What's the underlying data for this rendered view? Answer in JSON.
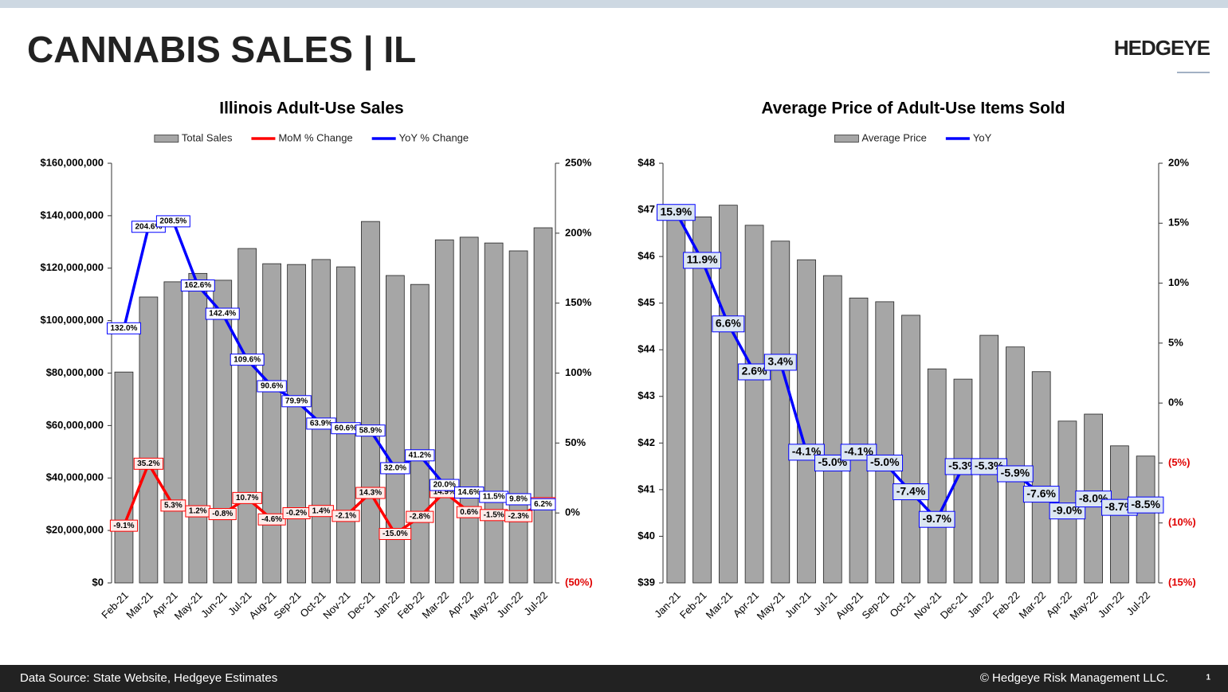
{
  "header": {
    "title": "CANNABIS SALES | IL",
    "logo": "HEDGEYE"
  },
  "footer": {
    "source": "Data Source: State Website, Hedgeye Estimates",
    "copyright": "© Hedgeye Risk Management LLC.",
    "page": "1"
  },
  "chart_data": [
    {
      "type": "combo",
      "title": "Illinois Adult-Use Sales",
      "categories": [
        "Feb-21",
        "Mar-21",
        "Apr-21",
        "May-21",
        "Jun-21",
        "Jul-21",
        "Aug-21",
        "Sep-21",
        "Oct-21",
        "Nov-21",
        "Dec-21",
        "Jan-22",
        "Feb-22",
        "Mar-22",
        "Apr-22",
        "May-22",
        "Jun-22",
        "Jul-22"
      ],
      "ylim": [
        0,
        160000000
      ],
      "yticks": [
        {
          "value": 0,
          "label": "$0"
        },
        {
          "value": 20000000,
          "label": "$20,000,000"
        },
        {
          "value": 40000000,
          "label": "$40,000,000"
        },
        {
          "value": 60000000,
          "label": "$60,000,000"
        },
        {
          "value": 80000000,
          "label": "$80,000,000"
        },
        {
          "value": 100000000,
          "label": "$100,000,000"
        },
        {
          "value": 120000000,
          "label": "$120,000,000"
        },
        {
          "value": 140000000,
          "label": "$140,000,000"
        },
        {
          "value": 160000000,
          "label": "$160,000,000"
        }
      ],
      "y2lim": [
        -50,
        250
      ],
      "y2ticks": [
        {
          "value": -50,
          "label": "(50%)"
        },
        {
          "value": 0,
          "label": "0%"
        },
        {
          "value": 50,
          "label": "50%"
        },
        {
          "value": 100,
          "label": "100%"
        },
        {
          "value": 150,
          "label": "150%"
        },
        {
          "value": 200,
          "label": "200%"
        },
        {
          "value": 250,
          "label": "250%"
        }
      ],
      "negative_tick_color": "#e00000",
      "series": [
        {
          "name": "Total Sales",
          "type": "bar",
          "color": "#a6a6a6",
          "values": [
            80400000,
            109000000,
            114800000,
            118000000,
            115400000,
            127500000,
            121700000,
            121400000,
            123300000,
            120500000,
            137800000,
            117200000,
            113800000,
            130800000,
            131800000,
            129600000,
            126600000,
            135400000
          ]
        },
        {
          "name": "MoM % Change",
          "type": "line",
          "axis": "y2",
          "color": "#ff0000",
          "label_fill": "#fdecea",
          "values": [
            -9.1,
            35.2,
            5.3,
            1.2,
            -0.8,
            10.7,
            -4.6,
            -0.2,
            1.4,
            -2.1,
            14.3,
            -15.0,
            -2.8,
            14.9,
            0.6,
            -1.5,
            -2.3,
            7.0
          ],
          "value_labels": [
            "-9.1%",
            "35.2%",
            "5.3%",
            "1.2%",
            "-0.8%",
            "10.7%",
            "-4.6%",
            "-0.2%",
            "1.4%",
            "-2.1%",
            "14.3%",
            "-15.0%",
            "-2.8%",
            "14.9%",
            "0.6%",
            "-1.5%",
            "-2.3%",
            "7.0%"
          ]
        },
        {
          "name": "YoY % Change",
          "type": "line",
          "axis": "y2",
          "color": "#0000ff",
          "label_fill": "#ffffff",
          "values": [
            132.0,
            204.6,
            208.5,
            162.6,
            142.4,
            109.6,
            90.6,
            79.9,
            63.9,
            60.6,
            58.9,
            32.0,
            41.2,
            20.0,
            14.6,
            11.5,
            9.8,
            6.2
          ],
          "value_labels": [
            "132.0%",
            "204.6%",
            "208.5%",
            "162.6%",
            "142.4%",
            "109.6%",
            "90.6%",
            "79.9%",
            "63.9%",
            "60.6%",
            "58.9%",
            "32.0%",
            "41.2%",
            "20.0%",
            "14.6%",
            "11.5%",
            "9.8%",
            "6.2%"
          ]
        }
      ]
    },
    {
      "type": "combo",
      "title": "Average Price of Adult-Use Items Sold",
      "categories": [
        "Jan-21",
        "Feb-21",
        "Mar-21",
        "Apr-21",
        "May-21",
        "Jun-21",
        "Jul-21",
        "Aug-21",
        "Sep-21",
        "Oct-21",
        "Nov-21",
        "Dec-21",
        "Jan-22",
        "Feb-22",
        "Mar-22",
        "Apr-22",
        "May-22",
        "Jun-22",
        "Jul-22"
      ],
      "ylim": [
        39,
        48
      ],
      "yticks": [
        {
          "value": 39,
          "label": "$39"
        },
        {
          "value": 40,
          "label": "$40"
        },
        {
          "value": 41,
          "label": "$41"
        },
        {
          "value": 42,
          "label": "$42"
        },
        {
          "value": 43,
          "label": "$43"
        },
        {
          "value": 44,
          "label": "$44"
        },
        {
          "value": 45,
          "label": "$45"
        },
        {
          "value": 46,
          "label": "$46"
        },
        {
          "value": 47,
          "label": "$47"
        },
        {
          "value": 48,
          "label": "$48"
        }
      ],
      "y2lim": [
        -15,
        20
      ],
      "y2ticks": [
        {
          "value": -15,
          "label": "(15%)"
        },
        {
          "value": -10,
          "label": "(10%)"
        },
        {
          "value": -5,
          "label": "(5%)"
        },
        {
          "value": 0,
          "label": "0%"
        },
        {
          "value": 5,
          "label": "5%"
        },
        {
          "value": 10,
          "label": "10%"
        },
        {
          "value": 15,
          "label": "15%"
        },
        {
          "value": 20,
          "label": "20%"
        }
      ],
      "negative_tick_color": "#e00000",
      "series": [
        {
          "name": "Average Price",
          "type": "bar",
          "color": "#a6a6a6",
          "values": [
            46.79,
            46.85,
            47.1,
            46.67,
            46.33,
            45.93,
            45.59,
            45.11,
            45.03,
            44.74,
            43.59,
            43.37,
            44.31,
            44.06,
            43.53,
            42.47,
            42.62,
            41.94,
            41.72
          ]
        },
        {
          "name": "YoY",
          "type": "line",
          "axis": "y2",
          "color": "#0000ff",
          "label_fill": "#dce6f2",
          "values": [
            15.9,
            11.9,
            6.6,
            2.6,
            3.4,
            -4.1,
            -5.0,
            -4.1,
            -5.0,
            -7.4,
            -9.7,
            -5.3,
            -5.3,
            -5.9,
            -7.6,
            -9.0,
            -8.0,
            -8.7,
            -8.5
          ],
          "value_labels": [
            "15.9%",
            "11.9%",
            "6.6%",
            "2.6%",
            "3.4%",
            "-4.1%",
            "-5.0%",
            "-4.1%",
            "-5.0%",
            "-7.4%",
            "-9.7%",
            "-5.3%",
            "-5.3%",
            "-5.9%",
            "-7.6%",
            "-9.0%",
            "-8.0%",
            "-8.7%",
            "-8.5%"
          ]
        }
      ]
    }
  ]
}
